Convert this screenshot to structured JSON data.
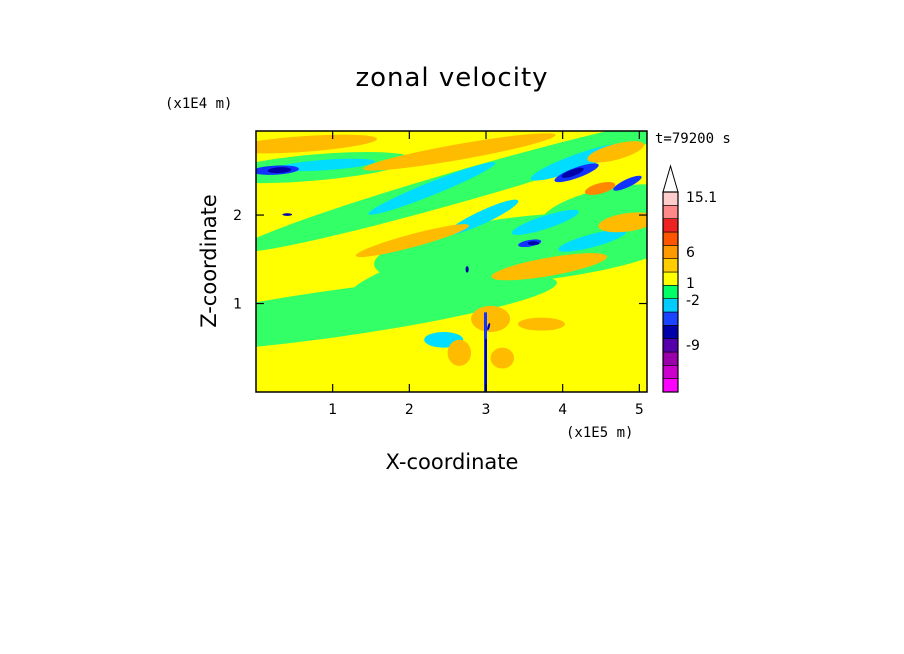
{
  "chart_data": {
    "type": "heatmap",
    "title": "zonal velocity",
    "time_label": "t=79200 s",
    "xlabel": "X-coordinate",
    "ylabel": "Z-coordinate",
    "x_unit": "(x1E5 m)",
    "y_unit": "(x1E4 m)",
    "xlim": [
      0,
      5.1
    ],
    "ylim": [
      0,
      2.95
    ],
    "x_ticks": [
      "1",
      "2",
      "3",
      "4",
      "5"
    ],
    "y_ticks": [
      "1",
      "2"
    ],
    "colorbar": {
      "labels": [
        "15.1",
        "6",
        "1",
        "-2",
        "-9"
      ],
      "levels": [
        -15,
        -12,
        -9,
        -6,
        -4,
        -2,
        -1,
        0,
        1,
        2,
        4,
        6,
        9,
        12,
        15.1
      ],
      "colors": [
        "#ff00ff",
        "#cc00cc",
        "#9900aa",
        "#5500aa",
        "#0000aa",
        "#1a44ff",
        "#00ccff",
        "#00ff66",
        "#ffff00",
        "#ffcc00",
        "#ff9900",
        "#ff5500",
        "#ee2222",
        "#ff8888",
        "#ffcccc"
      ]
    },
    "field_colors": {
      "background_yellow": "#ffff00",
      "green": "#33ff66",
      "cyan": "#00ddff",
      "orange": "#ffbb00",
      "dark_orange": "#ff8800",
      "blue": "#1133ff",
      "navy": "#0000aa"
    }
  }
}
